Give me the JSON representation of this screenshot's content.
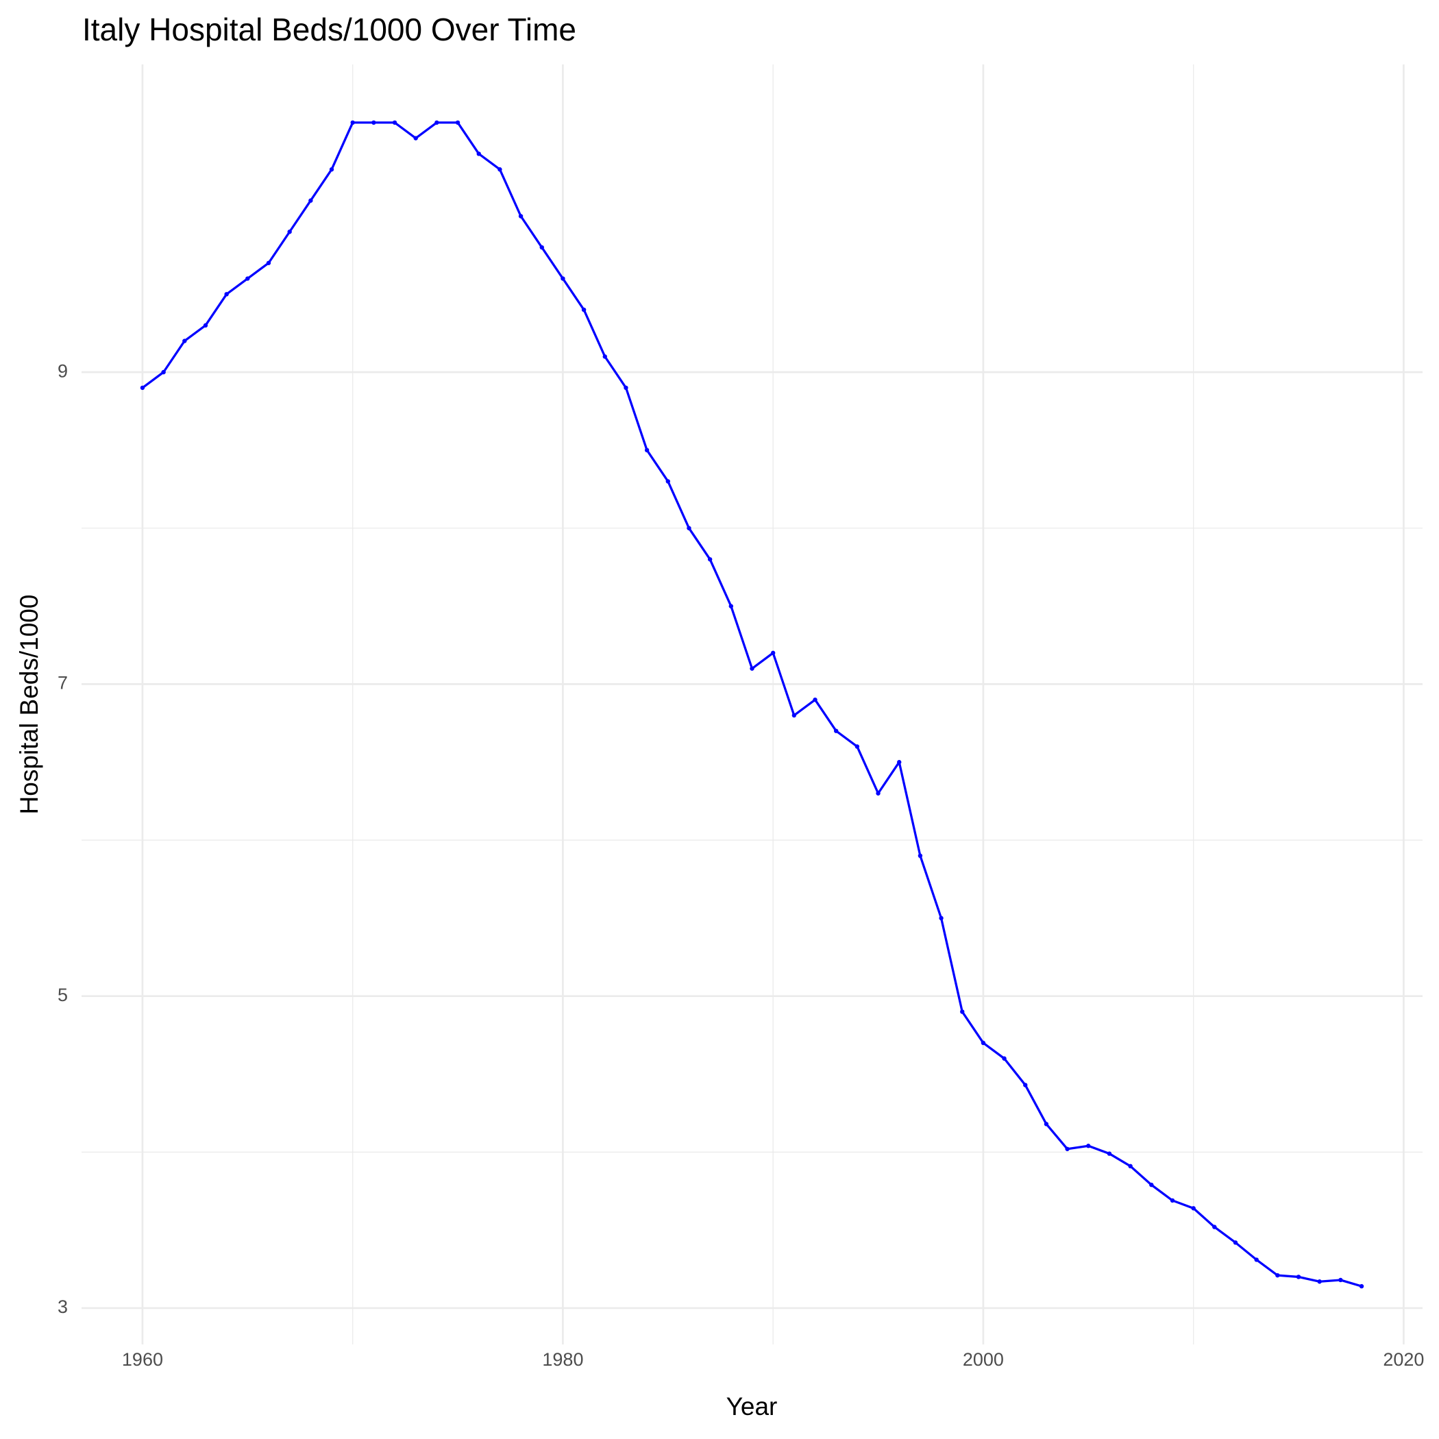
{
  "chart_data": {
    "type": "line",
    "title": "Italy Hospital Beds/1000 Over Time",
    "x_label": "Year",
    "y_label": "Hospital Beds/1000",
    "x": [
      1960,
      1961,
      1962,
      1963,
      1964,
      1965,
      1966,
      1967,
      1968,
      1969,
      1970,
      1971,
      1972,
      1973,
      1974,
      1975,
      1976,
      1977,
      1978,
      1979,
      1980,
      1981,
      1982,
      1983,
      1984,
      1985,
      1986,
      1987,
      1988,
      1989,
      1990,
      1991,
      1992,
      1993,
      1994,
      1995,
      1996,
      1997,
      1998,
      1999,
      2000,
      2001,
      2002,
      2003,
      2004,
      2005,
      2006,
      2007,
      2008,
      2009,
      2010,
      2011,
      2012,
      2013,
      2014,
      2015,
      2016,
      2017,
      2018
    ],
    "series": [
      {
        "name": "Hospital Beds/1000",
        "color": "#0000ff",
        "values": [
          8.9,
          9.0,
          9.2,
          9.3,
          9.5,
          9.6,
          9.7,
          9.9,
          10.1,
          10.3,
          10.6,
          10.6,
          10.6,
          10.5,
          10.6,
          10.6,
          10.4,
          10.3,
          10.0,
          9.8,
          9.6,
          9.4,
          9.1,
          8.9,
          8.5,
          8.3,
          8.0,
          7.8,
          7.5,
          7.1,
          7.2,
          6.8,
          6.9,
          6.7,
          6.6,
          6.3,
          6.5,
          5.9,
          5.5,
          4.9,
          4.7,
          4.6,
          4.43,
          4.18,
          4.02,
          4.04,
          3.99,
          3.91,
          3.79,
          3.69,
          3.64,
          3.52,
          3.42,
          3.31,
          3.21,
          3.2,
          3.17,
          3.18,
          3.14
        ]
      }
    ],
    "xlim": [
      1957.1,
      2020.9
    ],
    "xticks": [
      1960,
      1980,
      2000,
      2020
    ],
    "ylim": [
      2.767,
      10.973
    ],
    "yticks": [
      3,
      5,
      7,
      9
    ],
    "grid": true,
    "minor_grid": true,
    "points": true
  }
}
